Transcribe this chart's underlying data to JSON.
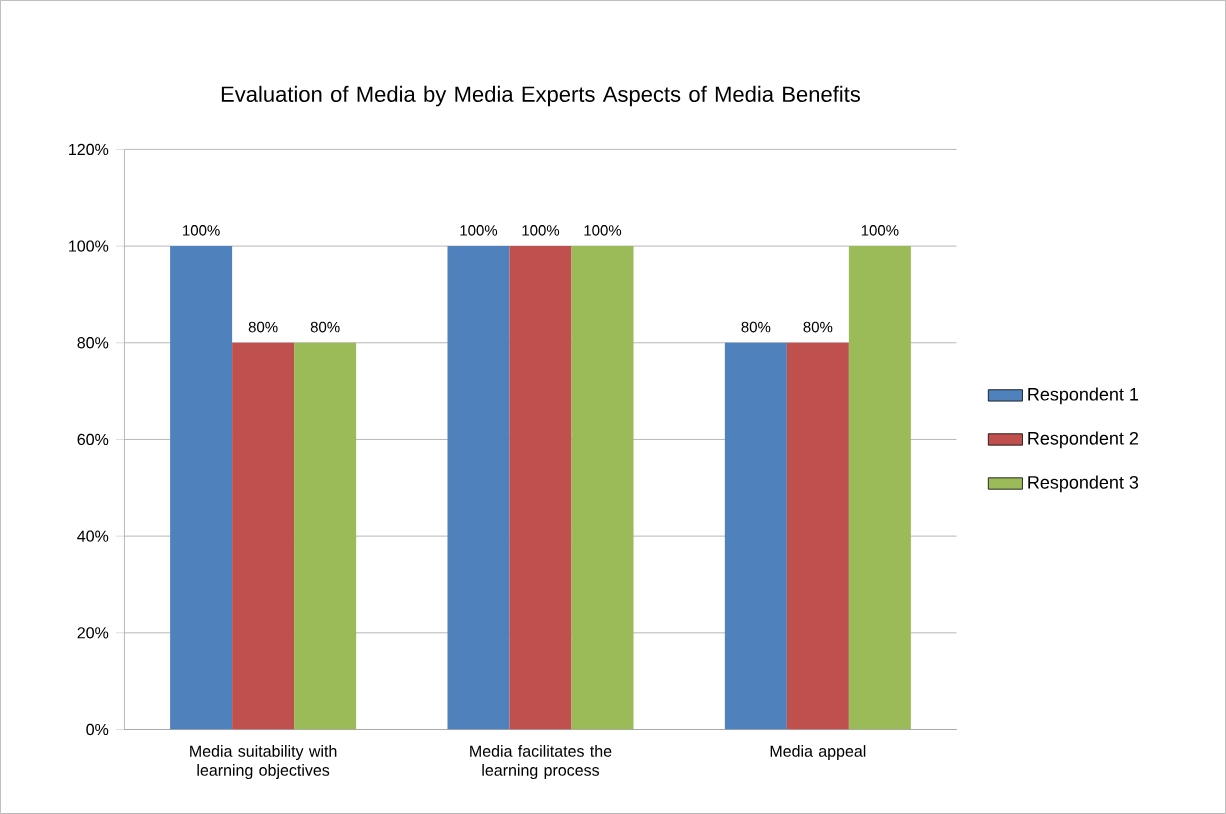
{
  "chart_data": {
    "type": "bar",
    "title": "Evaluation of Media by Media Experts Aspects of Media Benefits",
    "categories": [
      "Media suitability with learning objectives",
      "Media facilitates the learning process",
      "Media appeal"
    ],
    "series": [
      {
        "name": "Respondent 1",
        "color": "#4f81bd",
        "values": [
          100,
          100,
          80
        ],
        "value_labels": [
          "100%",
          "100%",
          "80%"
        ]
      },
      {
        "name": "Respondent 2",
        "color": "#c0504d",
        "values": [
          80,
          100,
          80
        ],
        "value_labels": [
          "80%",
          "100%",
          "80%"
        ]
      },
      {
        "name": "Respondent 3",
        "color": "#9bbb59",
        "values": [
          80,
          100,
          100
        ],
        "value_labels": [
          "80%",
          "100%",
          "100%"
        ]
      }
    ],
    "ylim": [
      0,
      120
    ],
    "yticks": [
      {
        "value": 0,
        "label": "0%"
      },
      {
        "value": 20,
        "label": "20%"
      },
      {
        "value": 40,
        "label": "40%"
      },
      {
        "value": 60,
        "label": "60%"
      },
      {
        "value": 80,
        "label": "80%"
      },
      {
        "value": 100,
        "label": "100%"
      },
      {
        "value": 120,
        "label": "120%"
      }
    ],
    "grid": "y",
    "legend": "right"
  }
}
